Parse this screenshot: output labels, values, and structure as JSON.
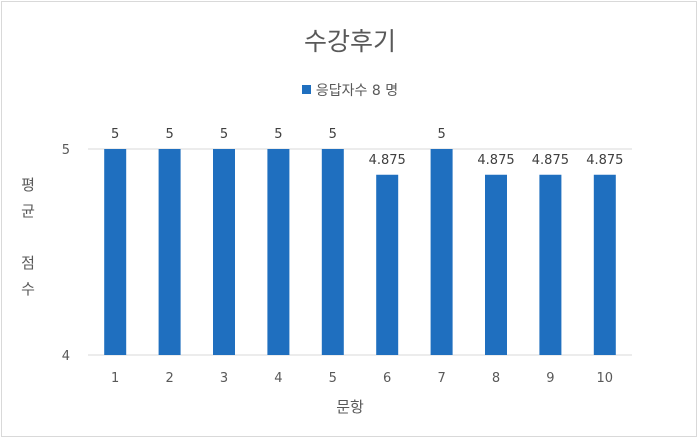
{
  "chart_data": {
    "type": "bar",
    "title": "수강후기",
    "xlabel": "문항",
    "ylabel_parts": [
      "평",
      "균",
      "",
      "점",
      "수"
    ],
    "ylim": [
      4,
      5
    ],
    "y_ticks": [
      "4",
      "5"
    ],
    "grid": true,
    "legend_position": "top",
    "categories": [
      "1",
      "2",
      "3",
      "4",
      "5",
      "6",
      "7",
      "8",
      "9",
      "10"
    ],
    "series": [
      {
        "name": "응답자수 8 명",
        "values": [
          5,
          5,
          5,
          5,
          5,
          4.875,
          5,
          4.875,
          4.875,
          4.875
        ],
        "labels": [
          "5",
          "5",
          "5",
          "5",
          "5",
          "4.875",
          "5",
          "4.875",
          "4.875",
          "4.875"
        ]
      }
    ],
    "colors": {
      "bar": "#1f6fbf",
      "grid": "#d9d9d9",
      "text": "#595959"
    }
  }
}
